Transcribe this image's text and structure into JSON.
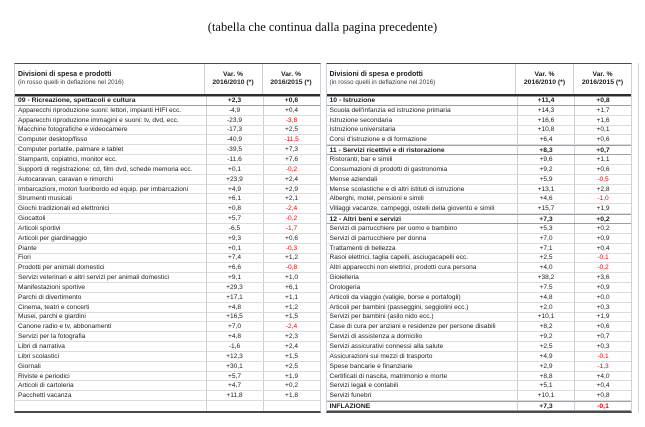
{
  "page": {
    "continuation_note": "(tabella che continua dalla pagina precedente)"
  },
  "colors": {
    "deflation_red": "#f20000",
    "text": "#1c1c1c"
  },
  "table": {
    "header": {
      "title": "Divisioni di spesa e prodotti",
      "subtitle": "(in rosso quelli in deflazione nel 2016)",
      "var1_line1": "Var. %",
      "var1_line2": "2016/2010 (*)",
      "var2_line1": "Var. %",
      "var2_line2": "2016/2015 (*)"
    },
    "left_rows": [
      {
        "type": "section",
        "label": "09 - Ricreazione, spettacoli e cultura",
        "v1": "+2,3",
        "v2": "+0,6"
      },
      {
        "type": "item",
        "label": "Apparecchi riproduzione suoni: lettori, impianti HIFI ecc.",
        "v1": "-4,9",
        "v2": "+0,4"
      },
      {
        "type": "item",
        "label": "Apparecchi riproduzione immagini e suoni: tv, dvd, ecc.",
        "v1": "-23,9",
        "v2": "-3,8"
      },
      {
        "type": "item",
        "label": "Macchine fotografiche e videocamere",
        "v1": "-17,3",
        "v2": "+2,5"
      },
      {
        "type": "item",
        "label": "Computer desktop/fisso",
        "v1": "-40,9",
        "v2": "-11,5"
      },
      {
        "type": "item",
        "label": "Computer portatile, palmare e tablet",
        "v1": "-39,5",
        "v2": "+7,3"
      },
      {
        "type": "item",
        "label": "Stampanti, copiatrici, monitor ecc.",
        "v1": "-11,6",
        "v2": "+7,6"
      },
      {
        "type": "item",
        "label": "Supporti di registrazione: cd, film dvd, schede memoria ecc.",
        "v1": "+0,1",
        "v2": "-0,2"
      },
      {
        "type": "item",
        "label": "Autocaravan, caravan e rimorchi",
        "v1": "+23,9",
        "v2": "+2,4"
      },
      {
        "type": "item",
        "label": "Imbarcazioni, motori fuoribordo ed equip. per imbarcazioni",
        "v1": "+4,9",
        "v2": "+2,9"
      },
      {
        "type": "item",
        "label": "Strumenti musicali",
        "v1": "+6,1",
        "v2": "+2,1"
      },
      {
        "type": "item",
        "label": "Giochi tradizionali ed elettronici",
        "v1": "+0,8",
        "v2": "-2,4"
      },
      {
        "type": "item",
        "label": "Giocattoli",
        "v1": "+5,7",
        "v2": "-0,2"
      },
      {
        "type": "item",
        "label": "Articoli sportivi",
        "v1": "-6,5",
        "v2": "-1,7"
      },
      {
        "type": "item",
        "label": "Articoli per giardinaggio",
        "v1": "+9,3",
        "v2": "+0,6"
      },
      {
        "type": "item",
        "label": "Piante",
        "v1": "+0,1",
        "v2": "-0,3"
      },
      {
        "type": "item",
        "label": "Fiori",
        "v1": "+7,4",
        "v2": "+1,2"
      },
      {
        "type": "item",
        "label": "Prodotti per animali domestici",
        "v1": "+6,6",
        "v2": "-0,8"
      },
      {
        "type": "item",
        "label": "Servizi veterinari e altri servizi per animali domestici",
        "v1": "+9,1",
        "v2": "+1,0"
      },
      {
        "type": "item",
        "label": "Manifestazioni sportive",
        "v1": "+29,3",
        "v2": "+6,1"
      },
      {
        "type": "item",
        "label": "Parchi di divertimento",
        "v1": "+17,1",
        "v2": "+1,1"
      },
      {
        "type": "item",
        "label": "Cinema, teatri e concerti",
        "v1": "+4,8",
        "v2": "+1,2"
      },
      {
        "type": "item",
        "label": "Musei, parchi e giardini",
        "v1": "+16,5",
        "v2": "+1,5"
      },
      {
        "type": "item",
        "label": "Canone radio e tv, abbonamenti",
        "v1": "+7,0",
        "v2": "-2,4"
      },
      {
        "type": "item",
        "label": "Servizi per la fotografia",
        "v1": "+4,8",
        "v2": "+2,3"
      },
      {
        "type": "item",
        "label": "Libri di narrativa",
        "v1": "-1,6",
        "v2": "+2,4"
      },
      {
        "type": "item",
        "label": "Libri scolastici",
        "v1": "+12,3",
        "v2": "+1,5"
      },
      {
        "type": "item",
        "label": "Giornali",
        "v1": "+30,1",
        "v2": "+2,5"
      },
      {
        "type": "item",
        "label": "Riviste e periodici",
        "v1": "+5,7",
        "v2": "+1,9"
      },
      {
        "type": "item",
        "label": "Articoli di cartoleria",
        "v1": "+4,7",
        "v2": "+0,2"
      },
      {
        "type": "item",
        "label": "Pacchetti vacanza",
        "v1": "+11,8",
        "v2": "+1,8"
      },
      {
        "type": "empty",
        "label": "",
        "v1": "",
        "v2": ""
      }
    ],
    "right_rows": [
      {
        "type": "section",
        "label": "10 - Istruzione",
        "v1": "+11,4",
        "v2": "+0,8"
      },
      {
        "type": "item",
        "label": "Scuola dell'infanzia ed istruzione primaria",
        "v1": "+14,3",
        "v2": "+1,7"
      },
      {
        "type": "item",
        "label": "Istruzione secondaria",
        "v1": "+16,6",
        "v2": "+1,6"
      },
      {
        "type": "item",
        "label": "Istruzione universitaria",
        "v1": "+10,8",
        "v2": "+0,1"
      },
      {
        "type": "item",
        "label": "Corsi d'istruzione e di formazione",
        "v1": "+6,4",
        "v2": "+0,6"
      },
      {
        "type": "section",
        "label": "11 - Servizi ricettivi e di ristorazione",
        "v1": "+8,3",
        "v2": "+0,7"
      },
      {
        "type": "item",
        "label": "Ristoranti, bar e simili",
        "v1": "+9,6",
        "v2": "+1,1"
      },
      {
        "type": "item",
        "label": "Consumazioni di prodotti di gastronomia",
        "v1": "+9,2",
        "v2": "+0,6"
      },
      {
        "type": "item",
        "label": "Mense aziendali",
        "v1": "+5,9",
        "v2": "-0,5"
      },
      {
        "type": "item",
        "label": "Mense scolastiche e di altri istituti di istruzione",
        "v1": "+13,1",
        "v2": "+2,8"
      },
      {
        "type": "item",
        "label": "Alberghi, motel, pensioni e simili",
        "v1": "+4,6",
        "v2": "-1,0"
      },
      {
        "type": "item",
        "label": "Villaggi vacanze, campeggi, ostelli della gioventù e simili",
        "v1": "+15,7",
        "v2": "+1,9"
      },
      {
        "type": "section",
        "label": "12 - Altri beni e servizi",
        "v1": "+7,3",
        "v2": "+0,2"
      },
      {
        "type": "item",
        "label": "Servizi di parrucchiere per uomo e bambino",
        "v1": "+5,3",
        "v2": "+0,2"
      },
      {
        "type": "item",
        "label": "Servizi di parrucchiere per donna",
        "v1": "+7,0",
        "v2": "+0,9"
      },
      {
        "type": "item",
        "label": "Trattamenti di bellezza",
        "v1": "+7,1",
        "v2": "+0,4"
      },
      {
        "type": "item",
        "label": "Rasoi elettrici, taglia capelli, asciugacapelli ecc.",
        "v1": "+2,5",
        "v2": "-0,1"
      },
      {
        "type": "item",
        "label": "Altri apparecchi non elettrici, prodotti cura persona",
        "v1": "+4,0",
        "v2": "-0,2"
      },
      {
        "type": "item",
        "label": "Gioielleria",
        "v1": "+38,2",
        "v2": "+3,6"
      },
      {
        "type": "item",
        "label": "Orologeria",
        "v1": "+7,5",
        "v2": "+0,9"
      },
      {
        "type": "item",
        "label": "Articoli da viaggio (valigie, borse e portafogli)",
        "v1": "+4,8",
        "v2": "+0,0"
      },
      {
        "type": "item",
        "label": "Articoli per bambini (passeggini, seggiolini ecc.)",
        "v1": "+2,0",
        "v2": "+0,3"
      },
      {
        "type": "item",
        "label": "Servizi per bambini (asilo nido ecc.)",
        "v1": "+10,1",
        "v2": "+1,9"
      },
      {
        "type": "item",
        "label": "Case di cura per anziani e residenze per persone disabili",
        "v1": "+8,2",
        "v2": "+0,6"
      },
      {
        "type": "item",
        "label": "Servizi di assistenza a domicilio",
        "v1": "+9,2",
        "v2": "+0,7"
      },
      {
        "type": "item",
        "label": "Servizi assicurativi connessi alla salute",
        "v1": "+2,5",
        "v2": "+0,3"
      },
      {
        "type": "item",
        "label": "Assicurazioni sui mezzi di trasporto",
        "v1": "+4,9",
        "v2": "-0,1"
      },
      {
        "type": "item",
        "label": "Spese bancarie e finanziarie",
        "v1": "+2,9",
        "v2": "-1,3"
      },
      {
        "type": "item",
        "label": "Certificati di nascita, matrimonio e morte",
        "v1": "+8,8",
        "v2": "+4,0"
      },
      {
        "type": "item",
        "label": "Servizi legali e contabili",
        "v1": "+5,1",
        "v2": "+0,4"
      },
      {
        "type": "item",
        "label": "Servizi funebri",
        "v1": "+10,1",
        "v2": "+0,8"
      },
      {
        "type": "total",
        "label": "INFLAZIONE",
        "v1": "+7,3",
        "v2": "-0,1"
      }
    ]
  }
}
